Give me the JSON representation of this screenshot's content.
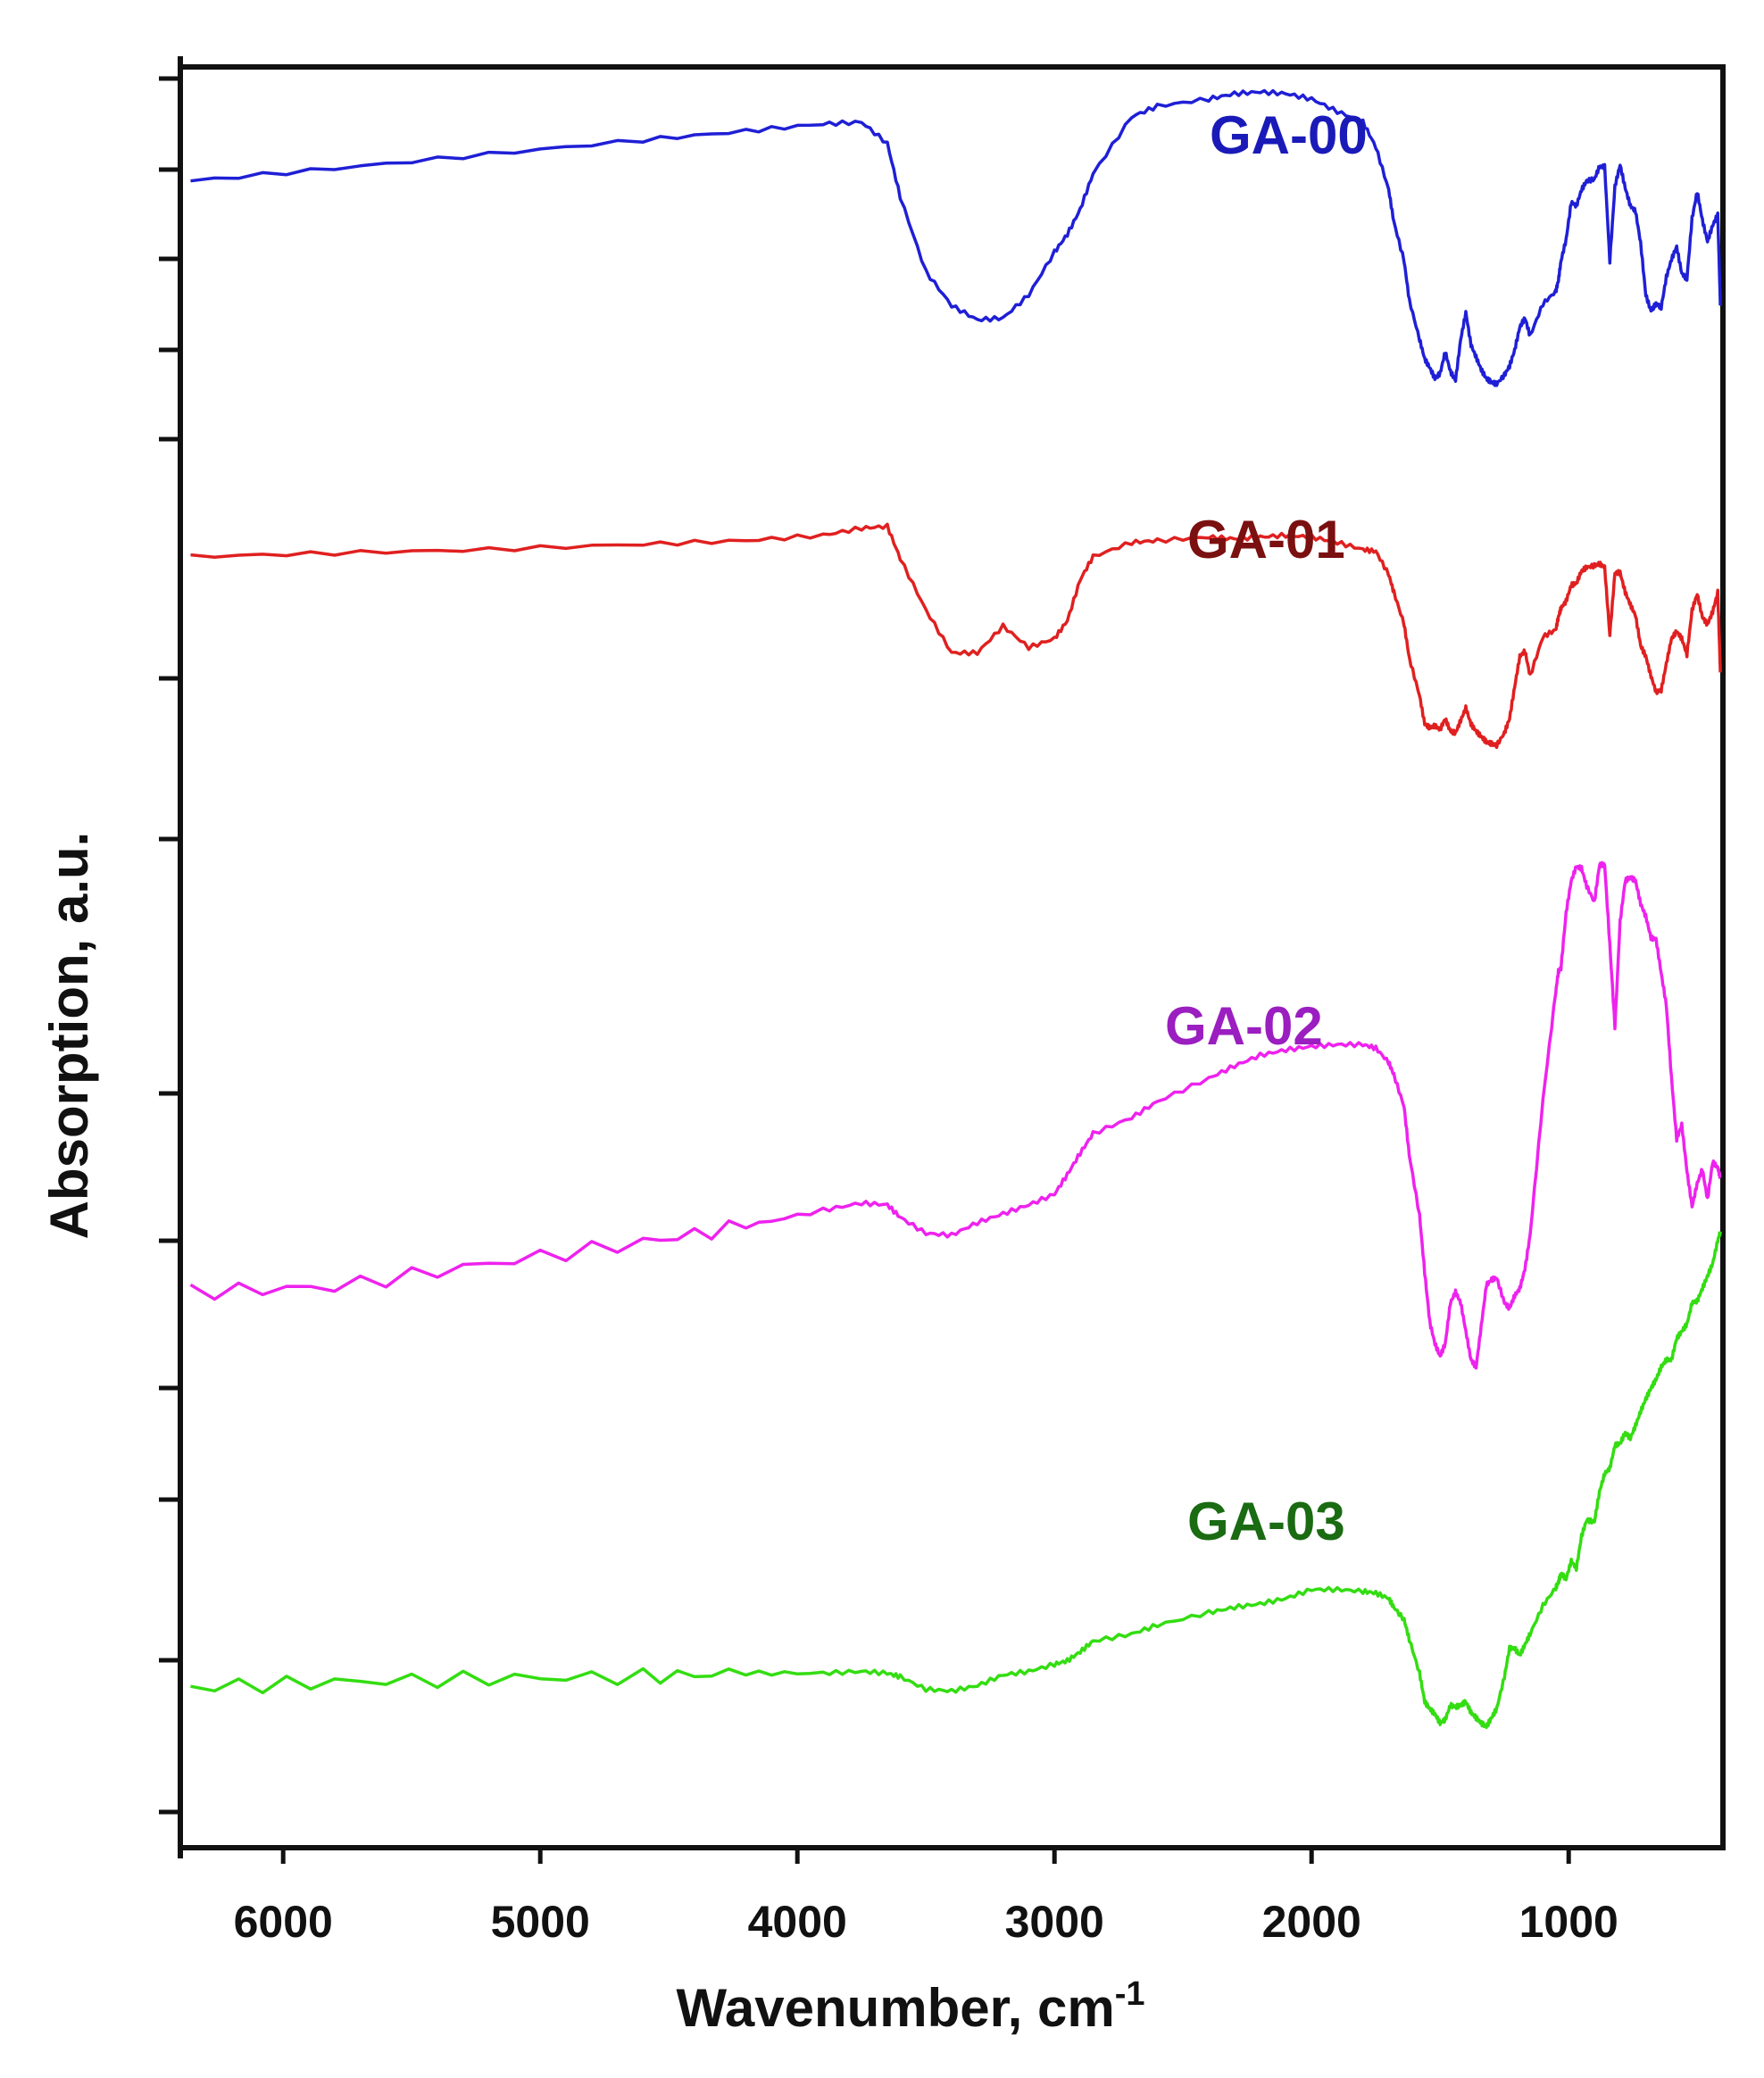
{
  "chart_data": {
    "type": "line",
    "title": "",
    "xlabel": "Wavenumber, cm",
    "xlabel_superscript": "-1",
    "ylabel": "Absorption, a.u.",
    "xlim": [
      6400,
      400
    ],
    "ylim": [
      0,
      100
    ],
    "x_axis_reversed": true,
    "grid": false,
    "legend": "inline labels right of traces",
    "x_ticks": [
      6000,
      5000,
      4000,
      3000,
      2000,
      1000
    ],
    "y_ticks_labeled": false,
    "series": [
      {
        "name": "GA-00",
        "color": "#1f1fd6",
        "label_color": "#1a1ab8",
        "x": [
          6360,
          5800,
          5200,
          4600,
          4200,
          3900,
          3750,
          3650,
          3600,
          3500,
          3400,
          3300,
          3200,
          3100,
          3000,
          2950,
          2900,
          2850,
          2700,
          2600,
          2400,
          2300,
          2200,
          2100,
          2000,
          1900,
          1800,
          1750,
          1700,
          1680,
          1640,
          1620,
          1580,
          1560,
          1540,
          1520,
          1500,
          1480,
          1460,
          1440,
          1420,
          1400,
          1380,
          1360,
          1340,
          1320,
          1300,
          1280,
          1250,
          1230,
          1210,
          1190,
          1170,
          1150,
          1100,
          1050,
          1040,
          1030,
          1010,
          990,
          970,
          950,
          930,
          900,
          880,
          860,
          840,
          820,
          800,
          780,
          760,
          740,
          720,
          700,
          680,
          660,
          640,
          620,
          600,
          580,
          560,
          540,
          520,
          500,
          480,
          460,
          440,
          420,
          410
        ],
        "values": [
          93.6,
          94.3,
          95.1,
          95.9,
          96.4,
          96.8,
          96.9,
          95.7,
          92.7,
          88.5,
          86.6,
          85.8,
          85.9,
          87.2,
          89.6,
          90.6,
          92.0,
          94.0,
          97.2,
          97.8,
          98.2,
          98.5,
          98.6,
          98.5,
          98.2,
          97.5,
          96.9,
          95.5,
          93.1,
          91.3,
          89.1,
          86.9,
          84.7,
          83.6,
          83.1,
          82.5,
          82.8,
          84.0,
          82.9,
          82.4,
          84.7,
          86.2,
          84.4,
          83.7,
          83.0,
          82.5,
          82.3,
          82.2,
          82.7,
          83.2,
          84.1,
          85.4,
          85.9,
          84.9,
          86.7,
          87.4,
          88.0,
          89.1,
          90.3,
          92.4,
          92.2,
          93.1,
          93.6,
          93.7,
          94.4,
          94.4,
          89.1,
          93.3,
          94.5,
          93.2,
          92.2,
          91.9,
          90.1,
          87.2,
          86.3,
          86.7,
          86.5,
          88.2,
          89.2,
          89.9,
          88.4,
          88.1,
          91.5,
          93.0,
          91.4,
          90.2,
          91.1,
          91.7,
          86.6
        ]
      },
      {
        "name": "GA-01",
        "color": "#e02020",
        "label_color": "#7a1010",
        "x": [
          6360,
          5800,
          5200,
          4600,
          4200,
          3900,
          3750,
          3650,
          3600,
          3500,
          3400,
          3300,
          3200,
          3100,
          3000,
          2950,
          2900,
          2850,
          2700,
          2600,
          2400,
          2300,
          2200,
          2100,
          2000,
          1900,
          1800,
          1750,
          1700,
          1680,
          1640,
          1620,
          1580,
          1560,
          1540,
          1520,
          1500,
          1480,
          1460,
          1440,
          1420,
          1400,
          1380,
          1360,
          1340,
          1320,
          1300,
          1280,
          1250,
          1230,
          1210,
          1190,
          1170,
          1150,
          1100,
          1050,
          1040,
          1030,
          1010,
          990,
          970,
          950,
          930,
          900,
          880,
          860,
          840,
          820,
          800,
          780,
          760,
          740,
          720,
          700,
          680,
          660,
          640,
          620,
          600,
          580,
          560,
          540,
          520,
          500,
          480,
          460,
          440,
          420,
          410
        ],
        "values": [
          72.5,
          72.7,
          72.9,
          73.2,
          73.4,
          73.7,
          74.1,
          74.2,
          72.4,
          69.5,
          67.1,
          67.1,
          68.6,
          67.4,
          67.9,
          68.9,
          71.2,
          72.5,
          73.3,
          73.4,
          73.6,
          73.5,
          73.6,
          73.7,
          73.6,
          73.3,
          72.9,
          72.8,
          71.5,
          70.5,
          68.7,
          66.8,
          64.7,
          63.1,
          62.9,
          63.0,
          62.8,
          63.4,
          62.7,
          62.6,
          63.3,
          64.0,
          63.1,
          62.7,
          62.4,
          62.1,
          62.0,
          61.9,
          62.6,
          63.4,
          65.2,
          66.9,
          67.2,
          65.8,
          68.0,
          68.4,
          69.1,
          69.6,
          70.0,
          70.9,
          71.0,
          71.7,
          71.9,
          72.0,
          72.1,
          71.9,
          68.1,
          71.6,
          71.6,
          70.5,
          69.8,
          69.2,
          67.5,
          66.9,
          65.8,
          64.9,
          65.0,
          66.5,
          67.9,
          68.3,
          67.9,
          67.0,
          69.5,
          70.4,
          69.1,
          68.7,
          69.4,
          70.5,
          66.0
        ]
      },
      {
        "name": "GA-02",
        "color": "#ee22ee",
        "label_color": "#9a1ec0",
        "x": [
          6360,
          5800,
          5200,
          4600,
          4200,
          3900,
          3750,
          3650,
          3600,
          3500,
          3400,
          3300,
          3200,
          3100,
          3000,
          2950,
          2900,
          2850,
          2700,
          2600,
          2400,
          2300,
          2200,
          2100,
          2000,
          1900,
          1800,
          1750,
          1700,
          1680,
          1640,
          1620,
          1580,
          1560,
          1540,
          1520,
          1500,
          1480,
          1460,
          1440,
          1420,
          1400,
          1380,
          1360,
          1340,
          1320,
          1300,
          1280,
          1250,
          1230,
          1210,
          1190,
          1170,
          1150,
          1100,
          1050,
          1040,
          1030,
          1010,
          990,
          970,
          950,
          930,
          900,
          880,
          860,
          840,
          820,
          800,
          780,
          760,
          740,
          720,
          700,
          680,
          660,
          640,
          620,
          600,
          580,
          560,
          540,
          520,
          500,
          480,
          460,
          440,
          420,
          410
        ],
        "values": [
          31.2,
          31.5,
          32.8,
          34.0,
          34.9,
          35.8,
          36.2,
          36.1,
          35.4,
          34.5,
          34.4,
          35.1,
          35.6,
          36.1,
          36.7,
          37.8,
          39.0,
          40.1,
          41.0,
          41.9,
          43.2,
          43.9,
          44.5,
          44.8,
          45.0,
          45.1,
          45.1,
          44.9,
          44.1,
          43.4,
          41.6,
          38.9,
          35.5,
          32.3,
          29.5,
          28.3,
          27.6,
          28.3,
          30.6,
          31.2,
          30.6,
          29.0,
          27.4,
          27.0,
          29.3,
          31.6,
          31.9,
          32.0,
          30.6,
          30.3,
          31.0,
          31.4,
          32.5,
          34.4,
          42.0,
          48.1,
          49.2,
          49.4,
          52.5,
          54.3,
          55.1,
          55.0,
          54.0,
          53.1,
          55.2,
          55.2,
          50.7,
          46.1,
          52.0,
          54.3,
          54.5,
          54.3,
          53.0,
          52.3,
          51.1,
          51.0,
          49.1,
          47.3,
          43.2,
          39.8,
          40.6,
          38.0,
          36.0,
          37.3,
          38.1,
          36.4,
          38.5,
          38.2,
          37.6
        ]
      },
      {
        "name": "GA-03",
        "color": "#33dd11",
        "label_color": "#1a6b12",
        "x": [
          6360,
          5800,
          5200,
          4600,
          4200,
          3900,
          3750,
          3650,
          3600,
          3500,
          3400,
          3300,
          3200,
          3100,
          3000,
          2950,
          2900,
          2850,
          2700,
          2600,
          2400,
          2300,
          2200,
          2100,
          2000,
          1900,
          1800,
          1750,
          1700,
          1680,
          1640,
          1620,
          1580,
          1560,
          1540,
          1520,
          1500,
          1480,
          1460,
          1440,
          1420,
          1400,
          1380,
          1360,
          1340,
          1320,
          1300,
          1280,
          1250,
          1230,
          1210,
          1190,
          1170,
          1150,
          1100,
          1050,
          1040,
          1030,
          1010,
          990,
          970,
          950,
          930,
          900,
          880,
          860,
          840,
          820,
          800,
          780,
          760,
          740,
          720,
          700,
          680,
          660,
          640,
          620,
          600,
          580,
          560,
          540,
          520,
          500,
          480,
          460,
          440,
          420,
          410
        ],
        "values": [
          9.0,
          9.3,
          9.5,
          9.6,
          9.8,
          9.8,
          9.9,
          9.8,
          9.6,
          8.9,
          8.8,
          9.1,
          9.7,
          9.9,
          10.3,
          10.5,
          11.0,
          11.6,
          12.0,
          12.5,
          13.2,
          13.5,
          13.7,
          14.0,
          14.5,
          14.5,
          14.4,
          14.3,
          14.0,
          13.5,
          12.8,
          11.7,
          9.8,
          8.2,
          7.8,
          7.5,
          7.0,
          7.2,
          8.0,
          7.9,
          8.0,
          8.2,
          7.6,
          7.3,
          7.0,
          6.8,
          7.3,
          7.8,
          9.6,
          11.2,
          11.2,
          10.8,
          11.4,
          12.0,
          13.6,
          14.6,
          14.9,
          15.4,
          15.1,
          16.1,
          15.7,
          17.5,
          18.4,
          18.3,
          20.0,
          21.0,
          21.3,
          22.6,
          22.7,
          23.3,
          23.0,
          23.7,
          24.5,
          25.2,
          25.8,
          26.3,
          27.0,
          27.4,
          27.4,
          28.6,
          29.0,
          29.4,
          30.6,
          30.7,
          31.4,
          32.1,
          32.8,
          34.1,
          34.6
        ]
      }
    ]
  }
}
